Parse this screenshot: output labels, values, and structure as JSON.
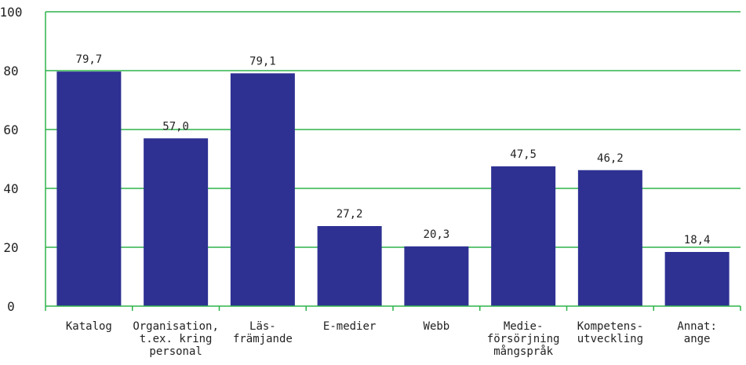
{
  "chart_data": {
    "type": "bar",
    "categories": [
      [
        "Katalog"
      ],
      [
        "Organisation,",
        "t.ex. kring",
        "personal"
      ],
      [
        "Läs-",
        "främjande"
      ],
      [
        "E-medier"
      ],
      [
        "Webb"
      ],
      [
        "Medie-",
        "försörjning",
        "mångspråk"
      ],
      [
        "Kompetens-",
        "utveckling"
      ],
      [
        "Annat:",
        "ange"
      ]
    ],
    "values": [
      79.7,
      57.0,
      79.1,
      27.2,
      20.3,
      47.5,
      46.2,
      18.4
    ],
    "value_labels": [
      "79,7",
      "57,0",
      "79,1",
      "27,2",
      "20,3",
      "47,5",
      "46,2",
      "18,4"
    ],
    "ylim": [
      0,
      100
    ],
    "yticks": [
      0,
      20,
      40,
      60,
      80,
      100
    ],
    "grid": true,
    "legend": "none",
    "colors": {
      "bar": "#2e3192",
      "grid": "#2eb34a",
      "axis": "#2eb34a",
      "text": "#222222"
    }
  }
}
